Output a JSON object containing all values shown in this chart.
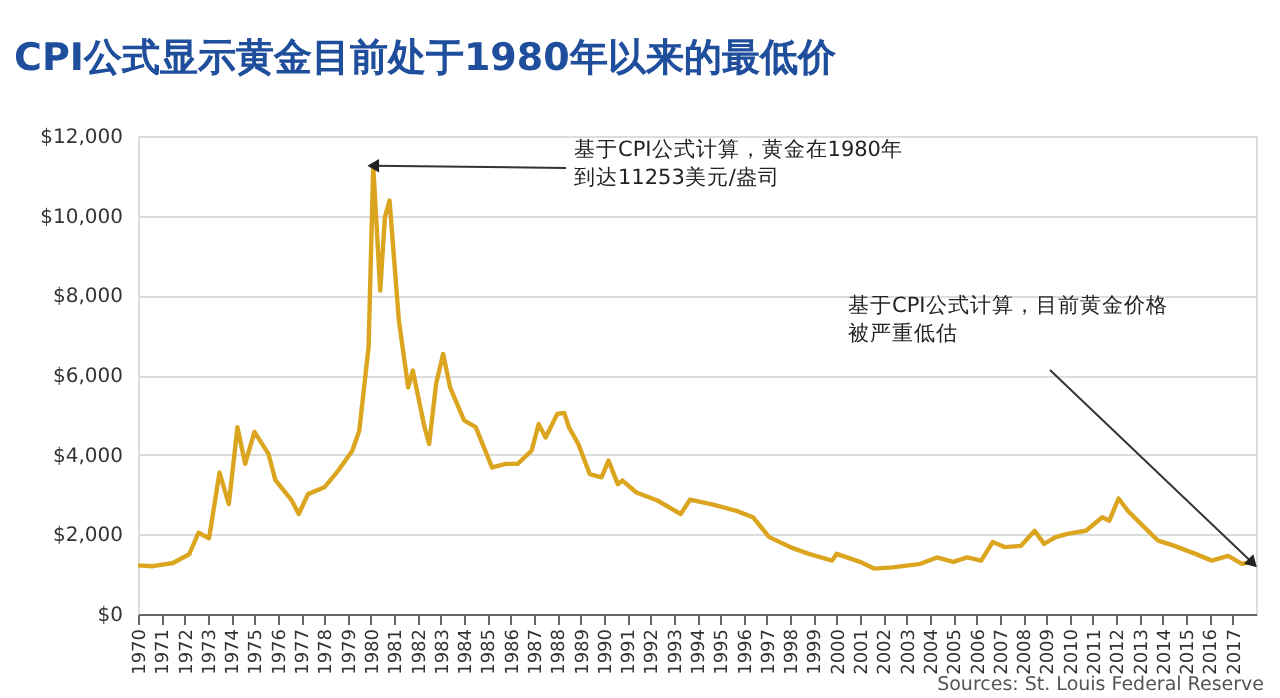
{
  "chart_data": {
    "type": "line",
    "title": "CPI公式显示黄金目前处于1980年以来的最低价",
    "x": [
      1970.0,
      1970.63,
      1971.5,
      1972.2,
      1972.6,
      1973.05,
      1973.5,
      1973.9,
      1974.27,
      1974.6,
      1975.0,
      1975.6,
      1975.9,
      1976.6,
      1976.9,
      1977.3,
      1978.0,
      1978.6,
      1979.2,
      1979.5,
      1979.9,
      1980.1,
      1980.4,
      1980.6,
      1980.8,
      1981.2,
      1981.6,
      1981.8,
      1982.3,
      1982.5,
      1982.8,
      1983.1,
      1983.4,
      1984.0,
      1984.5,
      1985.2,
      1985.8,
      1986.3,
      1986.9,
      1987.2,
      1987.5,
      1988.0,
      1988.3,
      1988.5,
      1988.9,
      1989.4,
      1989.9,
      1990.2,
      1990.6,
      1990.8,
      1991.4,
      1992.3,
      1993.3,
      1993.7,
      1994.6,
      1995.7,
      1996.4,
      1997.1,
      1998.0,
      1998.8,
      1999.8,
      2000.0,
      2001.0,
      2001.6,
      2002.4,
      2003.6,
      2004.3,
      2005.0,
      2005.6,
      2006.2,
      2006.7,
      2007.2,
      2007.9,
      2008.5,
      2008.9,
      2009.4,
      2009.9,
      2010.7,
      2011.4,
      2011.7,
      2012.1,
      2012.5,
      2013.2,
      2013.8,
      2014.5,
      2015.4,
      2016.1,
      2016.8,
      2017.4,
      2017.8
    ],
    "series": [
      {
        "color": "#dba520",
        "values": [
          1220,
          1200,
          1280,
          1500,
          2040,
          1900,
          3550,
          2760,
          4690,
          3770,
          4570,
          4020,
          3360,
          2850,
          2510,
          3010,
          3180,
          3600,
          4100,
          4600,
          6700,
          11253,
          8120,
          9960,
          10380,
          7370,
          5690,
          6110,
          4690,
          4270,
          5780,
          6530,
          5690,
          4860,
          4690,
          3680,
          3770,
          3770,
          4100,
          4770,
          4430,
          5020,
          5050,
          4690,
          4270,
          3510,
          3430,
          3850,
          3260,
          3350,
          3050,
          2850,
          2510,
          2870,
          2760,
          2590,
          2430,
          1930,
          1680,
          1510,
          1340,
          1510,
          1310,
          1140,
          1170,
          1260,
          1420,
          1310,
          1420,
          1340,
          1810,
          1680,
          1710,
          2090,
          1760,
          1930,
          2010,
          2090,
          2430,
          2340,
          2900,
          2590,
          2180,
          1840,
          1710,
          1510,
          1340,
          1460,
          1260,
          1310
        ]
      }
    ],
    "xlim": [
      1970,
      2018
    ],
    "xticks": [
      1970,
      1971,
      1972,
      1973,
      1974,
      1975,
      1976,
      1977,
      1978,
      1979,
      1980,
      1981,
      1982,
      1983,
      1984,
      1985,
      1986,
      1987,
      1988,
      1989,
      1990,
      1991,
      1992,
      1993,
      1994,
      1995,
      1996,
      1997,
      1998,
      1999,
      2000,
      2001,
      2002,
      2003,
      2004,
      2005,
      2006,
      2007,
      2008,
      2009,
      2010,
      2011,
      2012,
      2013,
      2014,
      2015,
      2016,
      2017
    ],
    "ylim": [
      0,
      12000
    ],
    "yticks": [
      {
        "value": 0,
        "label": "$0"
      },
      {
        "value": 2000,
        "label": "$2,000"
      },
      {
        "value": 4000,
        "label": "$4,000"
      },
      {
        "value": 6000,
        "label": "$6,000"
      },
      {
        "value": 8000,
        "label": "$8,000"
      },
      {
        "value": 10000,
        "label": "$10,000"
      },
      {
        "value": 12000,
        "label": "$12,000"
      }
    ],
    "grid": "y",
    "annotations": [
      {
        "text": "基于CPI公式计算，黄金在1980年到达11253美元/盎司",
        "x": 1980.1,
        "y": 11253
      },
      {
        "text": "基于CPI公式计算，目前黄金价格被严重低估",
        "x": 2017.8,
        "y": 1310
      },
      "Sources: St. Louis Federal Reserve"
    ]
  }
}
